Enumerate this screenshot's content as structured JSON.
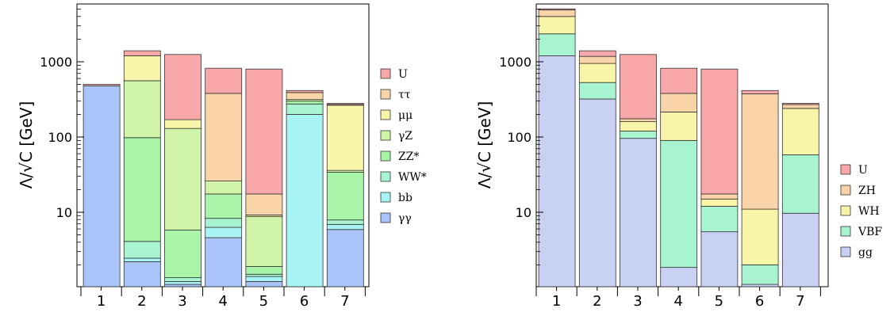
{
  "chart_data": [
    {
      "type": "bar",
      "stacked": true,
      "ylabel": "Λ/√C [GeV]",
      "y_scale": "log",
      "ylim": [
        0.7,
        7000
      ],
      "yticks": [
        10,
        100,
        1000
      ],
      "ytick_labels": [
        "10",
        "100",
        "1000"
      ],
      "categories": [
        "1",
        "2",
        "3",
        "4",
        "5",
        "6",
        "7"
      ],
      "legend_position": "right",
      "series": [
        {
          "name": "γγ",
          "color": "#a8c4f8",
          "values": [
            480,
            2.2,
            1.1,
            4.6,
            1.2,
            1.0,
            5.9
          ]
        },
        {
          "name": "bb",
          "color": "#a8f4f4",
          "values": [
            480,
            2.45,
            1.2,
            6.3,
            1.4,
            200,
            6.9
          ]
        },
        {
          "name": "WW*",
          "color": "#a8f4d0",
          "values": [
            480,
            4.1,
            1.35,
            8.3,
            1.5,
            275,
            7.9
          ]
        },
        {
          "name": "ZZ*",
          "color": "#a8f4a8",
          "values": [
            480,
            98,
            5.8,
            17.5,
            1.9,
            300,
            34
          ]
        },
        {
          "name": "γZ",
          "color": "#d0f4a8",
          "values": [
            480,
            560,
            130,
            26,
            8.8,
            315,
            36
          ]
        },
        {
          "name": "μμ",
          "color": "#f8f4a8",
          "values": [
            480,
            1200,
            170,
            26,
            9.2,
            315,
            265
          ]
        },
        {
          "name": "ττ",
          "color": "#f8d4a8",
          "values": [
            480,
            1200,
            170,
            380,
            17.5,
            390,
            270
          ]
        },
        {
          "name": "U",
          "color": "#f8a8a8",
          "values": [
            500,
            1400,
            1250,
            820,
            800,
            415,
            280
          ]
        }
      ]
    },
    {
      "type": "bar",
      "stacked": true,
      "ylabel": "Λ/√C [GeV]",
      "y_scale": "log",
      "ylim": [
        0.7,
        7000
      ],
      "yticks": [
        10,
        100,
        1000
      ],
      "ytick_labels": [
        "10",
        "100",
        "1000"
      ],
      "categories": [
        "1",
        "2",
        "3",
        "4",
        "5",
        "6",
        "7"
      ],
      "legend_position": "right",
      "series": [
        {
          "name": "gg",
          "color": "#c8d0f4",
          "values": [
            1200,
            320,
            96,
            1.85,
            5.5,
            1.1,
            9.7
          ]
        },
        {
          "name": "VBF",
          "color": "#a8f4d0",
          "values": [
            2350,
            530,
            120,
            90,
            12,
            2.0,
            58
          ]
        },
        {
          "name": "WH",
          "color": "#f8f4a8",
          "values": [
            4000,
            950,
            160,
            215,
            15,
            11,
            240
          ]
        },
        {
          "name": "ZH",
          "color": "#f8d4a8",
          "values": [
            4900,
            1180,
            175,
            380,
            17.5,
            375,
            270
          ]
        },
        {
          "name": "U",
          "color": "#f8a8a8",
          "values": [
            5050,
            1400,
            1250,
            820,
            800,
            415,
            280
          ]
        }
      ]
    }
  ]
}
